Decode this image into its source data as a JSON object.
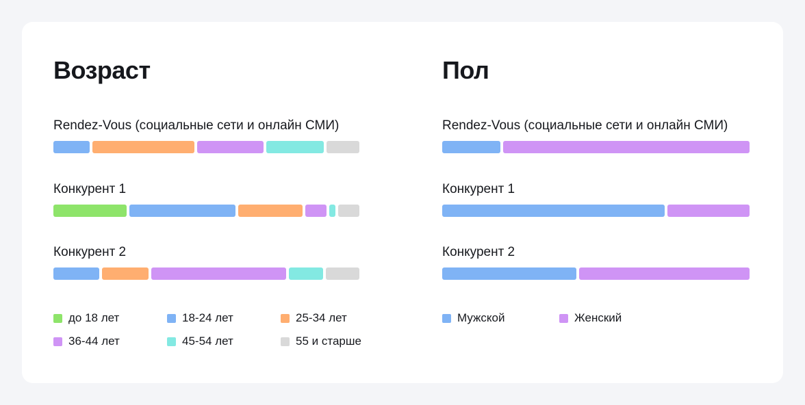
{
  "chart_data": [
    {
      "type": "bar",
      "orientation": "horizontal-stacked",
      "title": "Возраст",
      "categories": [
        "Rendez-Vous (социальные сети и онлайн СМИ)",
        "Конкурент 1",
        "Конкурент 2"
      ],
      "unit": "%",
      "series": [
        {
          "name": "до 18 лет",
          "color": "#8ee46a",
          "values": [
            0,
            24,
            0
          ]
        },
        {
          "name": "18-24 лет",
          "color": "#7fb3f5",
          "values": [
            12,
            35,
            15
          ]
        },
        {
          "name": "25-34 лет",
          "color": "#ffae70",
          "values": [
            34,
            21,
            15
          ]
        },
        {
          "name": "36-44 лет",
          "color": "#cf94f5",
          "values": [
            22,
            7,
            44
          ]
        },
        {
          "name": "45-54 лет",
          "color": "#83e9e2",
          "values": [
            19,
            2,
            11
          ]
        },
        {
          "name": "55 и старше",
          "color": "#d9d9d9",
          "values": [
            11,
            7,
            11
          ]
        }
      ],
      "legend_position": "bottom",
      "grid": false
    },
    {
      "type": "bar",
      "orientation": "horizontal-stacked",
      "title": "Пол",
      "categories": [
        "Rendez-Vous (социальные сети и онлайн СМИ)",
        "Конкурент 1",
        "Конкурент 2"
      ],
      "unit": "%",
      "series": [
        {
          "name": "Мужской",
          "color": "#7fb3f5",
          "values": [
            19,
            73,
            44
          ]
        },
        {
          "name": "Женский",
          "color": "#cf94f5",
          "values": [
            81,
            27,
            56
          ]
        }
      ],
      "legend_position": "bottom",
      "grid": false
    }
  ]
}
